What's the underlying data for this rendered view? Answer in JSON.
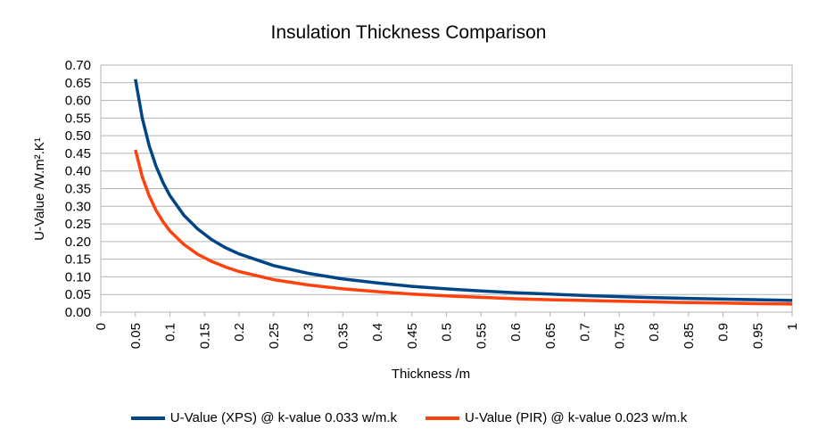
{
  "chart_data": {
    "type": "line",
    "title": "Insulation Thickness Comparison",
    "xlabel": "Thickness /m",
    "ylabel": "U-Value /W.m².K¹",
    "xlim": [
      0,
      1
    ],
    "ylim": [
      0,
      0.7
    ],
    "x_ticks": [
      "0",
      "0.05",
      "0.1",
      "0.15",
      "0.2",
      "0.25",
      "0.3",
      "0.35",
      "0.4",
      "0.45",
      "0.5",
      "0.55",
      "0.6",
      "0.65",
      "0.7",
      "0.75",
      "0.8",
      "0.85",
      "0.9",
      "0.95",
      "1"
    ],
    "y_ticks": [
      "0.00",
      "0.05",
      "0.10",
      "0.15",
      "0.20",
      "0.25",
      "0.30",
      "0.35",
      "0.40",
      "0.45",
      "0.50",
      "0.55",
      "0.60",
      "0.65",
      "0.70"
    ],
    "grid": true,
    "legend_position": "bottom",
    "x": [
      0.05,
      0.06,
      0.07,
      0.08,
      0.09,
      0.1,
      0.12,
      0.14,
      0.16,
      0.18,
      0.2,
      0.25,
      0.3,
      0.35,
      0.4,
      0.45,
      0.5,
      0.55,
      0.6,
      0.65,
      0.7,
      0.75,
      0.8,
      0.85,
      0.9,
      0.95,
      1.0
    ],
    "series": [
      {
        "name": "U-Value (XPS) @ k-value 0.033 w/m.k",
        "color": "#004586",
        "values": [
          0.66,
          0.55,
          0.471,
          0.413,
          0.367,
          0.33,
          0.275,
          0.236,
          0.206,
          0.183,
          0.165,
          0.132,
          0.11,
          0.094,
          0.083,
          0.073,
          0.066,
          0.06,
          0.055,
          0.051,
          0.047,
          0.044,
          0.041,
          0.039,
          0.037,
          0.035,
          0.033
        ]
      },
      {
        "name": "U-Value (PIR) @ k-value 0.023 w/m.k",
        "color": "#ff420e",
        "values": [
          0.46,
          0.383,
          0.329,
          0.288,
          0.256,
          0.23,
          0.192,
          0.164,
          0.144,
          0.128,
          0.115,
          0.092,
          0.077,
          0.066,
          0.058,
          0.051,
          0.046,
          0.042,
          0.038,
          0.035,
          0.033,
          0.031,
          0.029,
          0.027,
          0.026,
          0.024,
          0.023
        ]
      }
    ]
  }
}
